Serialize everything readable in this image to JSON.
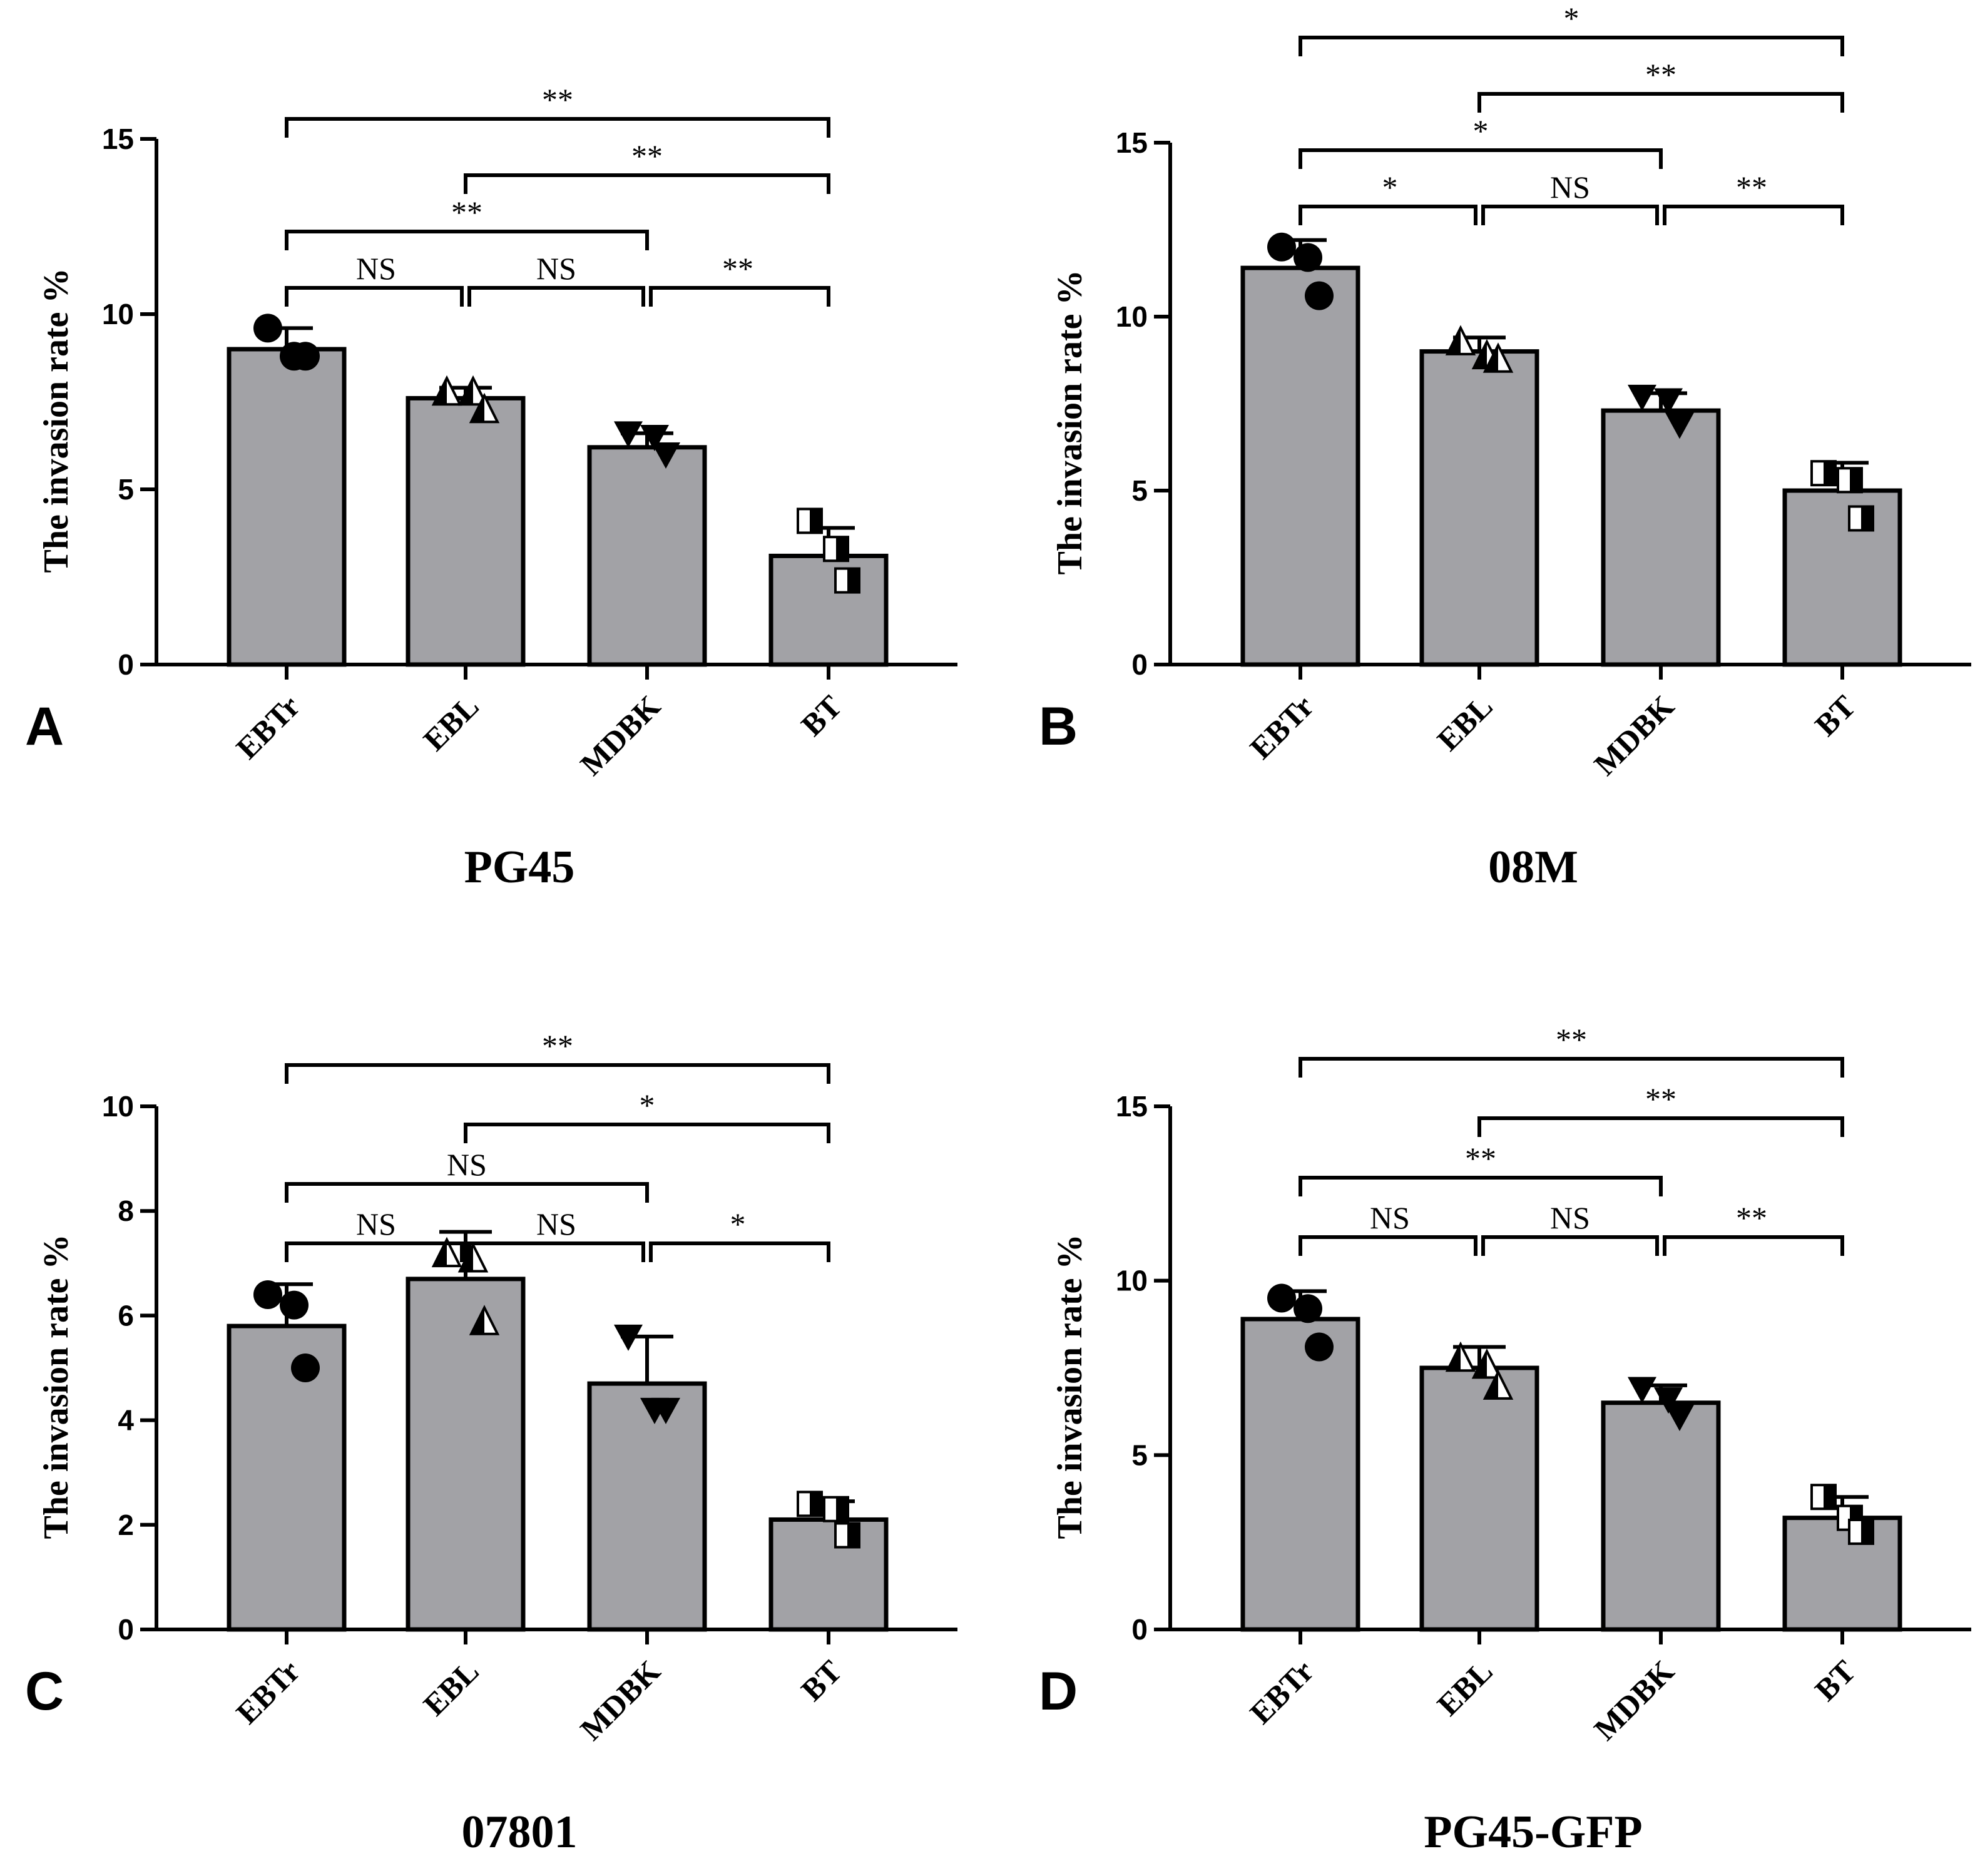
{
  "chart_data": [
    {
      "panel": "A",
      "type": "bar",
      "title": "PG45",
      "ylabel": "The invasion rate %",
      "xlabel": "",
      "ylim": [
        0,
        15
      ],
      "yticks": [
        0,
        5,
        10,
        15
      ],
      "categories": [
        "EBTr",
        "EBL",
        "MDBK",
        "BT"
      ],
      "values": [
        9.0,
        7.6,
        6.2,
        3.1
      ],
      "errors": [
        0.6,
        0.3,
        0.4,
        0.8
      ],
      "points": [
        [
          9.6,
          8.8,
          8.8
        ],
        [
          7.8,
          7.8,
          7.3
        ],
        [
          6.6,
          6.5,
          6.0
        ],
        [
          4.1,
          3.3,
          2.4
        ]
      ],
      "significance": [
        {
          "from": 0,
          "to": 1,
          "label": "NS",
          "level": 0
        },
        {
          "from": 1,
          "to": 2,
          "label": "NS",
          "level": 0
        },
        {
          "from": 2,
          "to": 3,
          "label": "**",
          "level": 0
        },
        {
          "from": 0,
          "to": 2,
          "label": "**",
          "level": 1
        },
        {
          "from": 1,
          "to": 3,
          "label": "**",
          "level": 2
        },
        {
          "from": 0,
          "to": 3,
          "label": "**",
          "level": 3
        }
      ]
    },
    {
      "panel": "B",
      "type": "bar",
      "title": "08M",
      "ylabel": "The invasion rate %",
      "xlabel": "",
      "ylim": [
        0,
        15
      ],
      "yticks": [
        0,
        5,
        10,
        15
      ],
      "categories": [
        "EBTr",
        "EBL",
        "MDBK",
        "BT"
      ],
      "values": [
        11.4,
        9.0,
        7.3,
        5.0
      ],
      "errors": [
        0.8,
        0.4,
        0.5,
        0.8
      ],
      "points": [
        [
          12.0,
          11.7,
          10.6
        ],
        [
          9.3,
          8.9,
          8.8
        ],
        [
          7.7,
          7.6,
          6.9
        ],
        [
          5.5,
          5.3,
          4.2
        ]
      ],
      "significance": [
        {
          "from": 0,
          "to": 1,
          "label": "*",
          "level": 0
        },
        {
          "from": 1,
          "to": 2,
          "label": "NS",
          "level": 0
        },
        {
          "from": 2,
          "to": 3,
          "label": "**",
          "level": 0
        },
        {
          "from": 0,
          "to": 2,
          "label": "*",
          "level": 1
        },
        {
          "from": 1,
          "to": 3,
          "label": "**",
          "level": 2
        },
        {
          "from": 0,
          "to": 3,
          "label": "*",
          "level": 3
        }
      ]
    },
    {
      "panel": "C",
      "type": "bar",
      "title": "07801",
      "ylabel": "The invasion rate %",
      "xlabel": "",
      "ylim": [
        0,
        10
      ],
      "yticks": [
        0,
        2,
        4,
        6,
        8,
        10
      ],
      "categories": [
        "EBTr",
        "EBL",
        "MDBK",
        "BT"
      ],
      "values": [
        5.8,
        6.7,
        4.7,
        2.1
      ],
      "errors": [
        0.8,
        0.9,
        0.9,
        0.35
      ],
      "points": [
        [
          6.4,
          6.2,
          5.0
        ],
        [
          7.2,
          7.1,
          5.9
        ],
        [
          5.6,
          4.2,
          4.2
        ],
        [
          2.4,
          2.3,
          1.8
        ]
      ],
      "significance": [
        {
          "from": 0,
          "to": 1,
          "label": "NS",
          "level": 0
        },
        {
          "from": 1,
          "to": 2,
          "label": "NS",
          "level": 0
        },
        {
          "from": 2,
          "to": 3,
          "label": "*",
          "level": 0
        },
        {
          "from": 0,
          "to": 2,
          "label": "NS",
          "level": 1
        },
        {
          "from": 1,
          "to": 3,
          "label": "*",
          "level": 2
        },
        {
          "from": 0,
          "to": 3,
          "label": "**",
          "level": 3
        }
      ]
    },
    {
      "panel": "D",
      "type": "bar",
      "title": "PG45-GFP",
      "ylabel": "The invasion rate %",
      "xlabel": "",
      "ylim": [
        0,
        15
      ],
      "yticks": [
        0,
        5,
        10,
        15
      ],
      "categories": [
        "EBTr",
        "EBL",
        "MDBK",
        "BT"
      ],
      "values": [
        8.9,
        7.5,
        6.5,
        3.2
      ],
      "errors": [
        0.8,
        0.6,
        0.5,
        0.6
      ],
      "points": [
        [
          9.5,
          9.2,
          8.1
        ],
        [
          7.8,
          7.6,
          7.0
        ],
        [
          6.9,
          6.6,
          6.1
        ],
        [
          3.8,
          3.2,
          2.8
        ]
      ],
      "significance": [
        {
          "from": 0,
          "to": 1,
          "label": "NS",
          "level": 0
        },
        {
          "from": 1,
          "to": 2,
          "label": "NS",
          "level": 0
        },
        {
          "from": 2,
          "to": 3,
          "label": "**",
          "level": 0
        },
        {
          "from": 0,
          "to": 2,
          "label": "**",
          "level": 1
        },
        {
          "from": 1,
          "to": 3,
          "label": "**",
          "level": 2
        },
        {
          "from": 0,
          "to": 3,
          "label": "**",
          "level": 3
        }
      ]
    }
  ],
  "colors": {
    "bar_fill": "#a2a2a6",
    "stroke": "#000000"
  },
  "marker_icons": [
    "filled-circle-icon",
    "half-triangle-icon",
    "filled-down-triangle-icon",
    "half-square-icon"
  ]
}
